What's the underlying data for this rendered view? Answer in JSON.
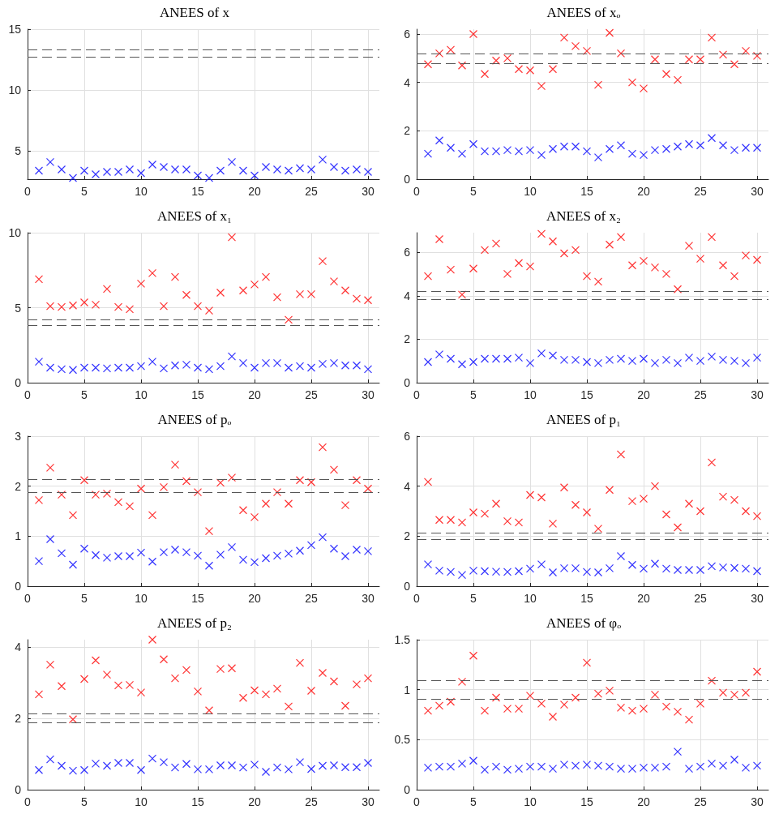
{
  "chart_data": [
    {
      "type": "scatter",
      "title": "ANEES of x",
      "x": [
        1,
        2,
        3,
        4,
        5,
        6,
        7,
        8,
        9,
        10,
        11,
        12,
        13,
        14,
        15,
        16,
        17,
        18,
        19,
        20,
        21,
        22,
        23,
        24,
        25,
        26,
        27,
        28,
        29,
        30
      ],
      "xlim": [
        0,
        31
      ],
      "xticks": [
        0,
        5,
        10,
        15,
        20,
        25,
        30
      ],
      "ylim": [
        2.7,
        15
      ],
      "yticks": [
        5,
        10,
        15
      ],
      "grid": true,
      "marker": "cross",
      "series": [
        {
          "color": "#0000ff",
          "values": [
            3.4,
            4.1,
            3.5,
            2.8,
            3.4,
            3.1,
            3.3,
            3.3,
            3.5,
            3.2,
            3.9,
            3.7,
            3.5,
            3.5,
            3.0,
            2.8,
            3.4,
            4.1,
            3.4,
            3.0,
            3.7,
            3.5,
            3.4,
            3.6,
            3.5,
            4.3,
            3.7,
            3.4,
            3.5,
            3.3
          ]
        }
      ],
      "ref_lines": [
        {
          "axis": "y",
          "value": 13.3,
          "color": "#555555",
          "line_style": "dashed"
        },
        {
          "axis": "y",
          "value": 12.7,
          "color": "#555555",
          "line_style": "dashed"
        }
      ]
    },
    {
      "type": "scatter",
      "title": "ANEES of xₒ",
      "x": [
        1,
        2,
        3,
        4,
        5,
        6,
        7,
        8,
        9,
        10,
        11,
        12,
        13,
        14,
        15,
        16,
        17,
        18,
        19,
        20,
        21,
        22,
        23,
        24,
        25,
        26,
        27,
        28,
        29,
        30
      ],
      "xlim": [
        0,
        31
      ],
      "xticks": [
        0,
        5,
        10,
        15,
        20,
        25,
        30
      ],
      "ylim": [
        0,
        6.2
      ],
      "yticks": [
        0,
        2,
        4,
        6
      ],
      "grid": true,
      "marker": "cross",
      "series": [
        {
          "color": "#ff0000",
          "values": [
            4.75,
            5.2,
            5.35,
            4.7,
            6.0,
            4.35,
            4.9,
            5.0,
            4.55,
            4.5,
            3.85,
            4.55,
            5.85,
            5.5,
            5.3,
            3.9,
            6.05,
            5.2,
            4.0,
            3.75,
            4.95,
            4.35,
            4.1,
            4.95,
            4.95,
            5.85,
            5.15,
            4.75,
            5.3,
            5.1
          ]
        },
        {
          "color": "#0000ff",
          "values": [
            1.05,
            1.6,
            1.3,
            1.05,
            1.45,
            1.15,
            1.15,
            1.2,
            1.15,
            1.2,
            1.0,
            1.25,
            1.35,
            1.35,
            1.15,
            0.9,
            1.25,
            1.4,
            1.05,
            1.0,
            1.2,
            1.25,
            1.35,
            1.45,
            1.4,
            1.7,
            1.4,
            1.2,
            1.3,
            1.3
          ]
        }
      ],
      "ref_lines": [
        {
          "axis": "y",
          "value": 5.2,
          "color": "#555555",
          "line_style": "dashed"
        },
        {
          "axis": "y",
          "value": 4.8,
          "color": "#555555",
          "line_style": "dashed"
        }
      ]
    },
    {
      "type": "scatter",
      "title": "ANEES of x₁",
      "x": [
        1,
        2,
        3,
        4,
        5,
        6,
        7,
        8,
        9,
        10,
        11,
        12,
        13,
        14,
        15,
        16,
        17,
        18,
        19,
        20,
        21,
        22,
        23,
        24,
        25,
        26,
        27,
        28,
        29,
        30
      ],
      "xlim": [
        0,
        31
      ],
      "xticks": [
        0,
        5,
        10,
        15,
        20,
        25,
        30
      ],
      "ylim": [
        0,
        10
      ],
      "yticks": [
        0,
        5,
        10
      ],
      "grid": true,
      "marker": "cross",
      "series": [
        {
          "color": "#ff0000",
          "values": [
            6.9,
            5.1,
            5.05,
            5.15,
            5.35,
            5.2,
            6.25,
            5.05,
            4.9,
            6.6,
            7.3,
            5.1,
            7.05,
            5.85,
            5.1,
            4.8,
            6.0,
            9.7,
            6.15,
            6.55,
            7.05,
            5.7,
            4.2,
            5.9,
            5.9,
            8.1,
            6.75,
            6.15,
            5.6,
            5.5
          ]
        },
        {
          "color": "#0000ff",
          "values": [
            1.4,
            1.0,
            0.9,
            0.85,
            1.0,
            1.0,
            0.95,
            1.0,
            1.0,
            1.1,
            1.4,
            0.95,
            1.15,
            1.2,
            1.0,
            0.9,
            1.1,
            1.75,
            1.3,
            1.0,
            1.3,
            1.3,
            1.0,
            1.1,
            1.0,
            1.25,
            1.3,
            1.15,
            1.15,
            0.9
          ]
        }
      ],
      "ref_lines": [
        {
          "axis": "y",
          "value": 4.2,
          "color": "#555555",
          "line_style": "dashed"
        },
        {
          "axis": "y",
          "value": 3.8,
          "color": "#555555",
          "line_style": "dashed"
        }
      ]
    },
    {
      "type": "scatter",
      "title": "ANEES of x₂",
      "x": [
        1,
        2,
        3,
        4,
        5,
        6,
        7,
        8,
        9,
        10,
        11,
        12,
        13,
        14,
        15,
        16,
        17,
        18,
        19,
        20,
        21,
        22,
        23,
        24,
        25,
        26,
        27,
        28,
        29,
        30
      ],
      "xlim": [
        0,
        31
      ],
      "xticks": [
        0,
        5,
        10,
        15,
        20,
        25,
        30
      ],
      "ylim": [
        0,
        6.9
      ],
      "yticks": [
        0,
        2,
        4,
        6
      ],
      "grid": true,
      "marker": "cross",
      "series": [
        {
          "color": "#ff0000",
          "values": [
            4.9,
            6.6,
            5.2,
            4.05,
            5.25,
            6.1,
            6.4,
            5.0,
            5.5,
            5.35,
            6.85,
            6.5,
            5.95,
            6.1,
            4.9,
            4.65,
            6.35,
            6.7,
            5.4,
            5.6,
            5.3,
            5.0,
            4.3,
            6.3,
            5.7,
            6.7,
            5.4,
            4.9,
            5.85,
            5.65
          ]
        },
        {
          "color": "#0000ff",
          "values": [
            0.95,
            1.3,
            1.1,
            0.85,
            0.95,
            1.1,
            1.1,
            1.1,
            1.15,
            0.9,
            1.35,
            1.25,
            1.05,
            1.05,
            0.95,
            0.9,
            1.05,
            1.1,
            1.0,
            1.1,
            0.9,
            1.05,
            0.9,
            1.15,
            1.0,
            1.2,
            1.05,
            1.0,
            0.9,
            1.15
          ]
        }
      ],
      "ref_lines": [
        {
          "axis": "y",
          "value": 4.2,
          "color": "#555555",
          "line_style": "dashed"
        },
        {
          "axis": "y",
          "value": 3.85,
          "color": "#555555",
          "line_style": "dashed"
        }
      ]
    },
    {
      "type": "scatter",
      "title": "ANEES of pₒ",
      "x": [
        1,
        2,
        3,
        4,
        5,
        6,
        7,
        8,
        9,
        10,
        11,
        12,
        13,
        14,
        15,
        16,
        17,
        18,
        19,
        20,
        21,
        22,
        23,
        24,
        25,
        26,
        27,
        28,
        29,
        30
      ],
      "xlim": [
        0,
        31
      ],
      "xticks": [
        0,
        5,
        10,
        15,
        20,
        25,
        30
      ],
      "ylim": [
        0,
        3
      ],
      "yticks": [
        0,
        1,
        2,
        3
      ],
      "grid": true,
      "marker": "cross",
      "series": [
        {
          "color": "#ff0000",
          "values": [
            1.72,
            2.37,
            1.83,
            1.42,
            2.12,
            1.83,
            1.85,
            1.68,
            1.6,
            1.95,
            1.42,
            1.98,
            2.43,
            2.1,
            1.88,
            1.1,
            2.07,
            2.17,
            1.52,
            1.38,
            1.65,
            1.88,
            1.65,
            2.12,
            2.08,
            2.78,
            2.33,
            1.62,
            2.12,
            1.95
          ]
        },
        {
          "color": "#0000ff",
          "values": [
            0.5,
            0.94,
            0.66,
            0.43,
            0.75,
            0.62,
            0.57,
            0.6,
            0.6,
            0.67,
            0.49,
            0.68,
            0.73,
            0.68,
            0.61,
            0.41,
            0.63,
            0.78,
            0.53,
            0.48,
            0.56,
            0.61,
            0.65,
            0.71,
            0.82,
            0.98,
            0.75,
            0.6,
            0.73,
            0.7
          ]
        }
      ],
      "ref_lines": [
        {
          "axis": "y",
          "value": 2.13,
          "color": "#555555",
          "line_style": "dashed"
        },
        {
          "axis": "y",
          "value": 1.87,
          "color": "#555555",
          "line_style": "dashed"
        }
      ]
    },
    {
      "type": "scatter",
      "title": "ANEES of p₁",
      "x": [
        1,
        2,
        3,
        4,
        5,
        6,
        7,
        8,
        9,
        10,
        11,
        12,
        13,
        14,
        15,
        16,
        17,
        18,
        19,
        20,
        21,
        22,
        23,
        24,
        25,
        26,
        27,
        28,
        29,
        30
      ],
      "xlim": [
        0,
        31
      ],
      "xticks": [
        0,
        5,
        10,
        15,
        20,
        25,
        30
      ],
      "ylim": [
        0,
        6
      ],
      "yticks": [
        0,
        2,
        4,
        6
      ],
      "grid": true,
      "marker": "cross",
      "series": [
        {
          "color": "#ff0000",
          "values": [
            4.17,
            2.65,
            2.65,
            2.55,
            2.95,
            2.9,
            3.3,
            2.6,
            2.55,
            3.65,
            3.55,
            2.5,
            3.95,
            3.25,
            2.95,
            2.3,
            3.85,
            5.27,
            3.4,
            3.5,
            4.0,
            2.87,
            2.35,
            3.3,
            3.0,
            4.95,
            3.58,
            3.45,
            3.0,
            2.8
          ]
        },
        {
          "color": "#0000ff",
          "values": [
            0.87,
            0.62,
            0.57,
            0.45,
            0.62,
            0.6,
            0.58,
            0.57,
            0.6,
            0.7,
            0.87,
            0.55,
            0.72,
            0.72,
            0.57,
            0.55,
            0.72,
            1.2,
            0.85,
            0.7,
            0.9,
            0.7,
            0.65,
            0.65,
            0.65,
            0.8,
            0.75,
            0.73,
            0.7,
            0.6
          ]
        }
      ],
      "ref_lines": [
        {
          "axis": "y",
          "value": 2.13,
          "color": "#555555",
          "line_style": "dashed"
        },
        {
          "axis": "y",
          "value": 1.87,
          "color": "#555555",
          "line_style": "dashed"
        }
      ]
    },
    {
      "type": "scatter",
      "title": "ANEES of p₂",
      "x": [
        1,
        2,
        3,
        4,
        5,
        6,
        7,
        8,
        9,
        10,
        11,
        12,
        13,
        14,
        15,
        16,
        17,
        18,
        19,
        20,
        21,
        22,
        23,
        24,
        25,
        26,
        27,
        28,
        29,
        30
      ],
      "xlim": [
        0,
        31
      ],
      "xticks": [
        0,
        5,
        10,
        15,
        20,
        25,
        30
      ],
      "ylim": [
        0,
        4.2
      ],
      "yticks": [
        0,
        2,
        4
      ],
      "grid": true,
      "marker": "cross",
      "series": [
        {
          "color": "#ff0000",
          "values": [
            2.67,
            3.5,
            2.9,
            1.97,
            3.1,
            3.62,
            3.22,
            2.92,
            2.93,
            2.72,
            4.2,
            3.65,
            3.12,
            3.35,
            2.75,
            2.22,
            3.38,
            3.4,
            2.57,
            2.78,
            2.67,
            2.83,
            2.33,
            3.55,
            2.77,
            3.27,
            3.03,
            2.35,
            2.95,
            3.12
          ]
        },
        {
          "color": "#0000ff",
          "values": [
            0.55,
            0.85,
            0.67,
            0.53,
            0.55,
            0.73,
            0.67,
            0.75,
            0.75,
            0.55,
            0.87,
            0.77,
            0.62,
            0.72,
            0.57,
            0.57,
            0.68,
            0.68,
            0.62,
            0.7,
            0.5,
            0.62,
            0.57,
            0.77,
            0.58,
            0.67,
            0.68,
            0.63,
            0.63,
            0.75
          ]
        }
      ],
      "ref_lines": [
        {
          "axis": "y",
          "value": 2.13,
          "color": "#555555",
          "line_style": "dashed"
        },
        {
          "axis": "y",
          "value": 1.87,
          "color": "#555555",
          "line_style": "dashed"
        }
      ]
    },
    {
      "type": "scatter",
      "title": "ANEES of φₒ",
      "x": [
        1,
        2,
        3,
        4,
        5,
        6,
        7,
        8,
        9,
        10,
        11,
        12,
        13,
        14,
        15,
        16,
        17,
        18,
        19,
        20,
        21,
        22,
        23,
        24,
        25,
        26,
        27,
        28,
        29,
        30
      ],
      "xlim": [
        0,
        31
      ],
      "xticks": [
        0,
        5,
        10,
        15,
        20,
        25,
        30
      ],
      "ylim": [
        0,
        1.5
      ],
      "yticks": [
        0,
        0.5,
        1,
        1.5
      ],
      "grid": true,
      "marker": "cross",
      "series": [
        {
          "color": "#ff0000",
          "values": [
            0.79,
            0.84,
            0.88,
            1.08,
            1.34,
            0.79,
            0.92,
            0.81,
            0.81,
            0.94,
            0.86,
            0.73,
            0.85,
            0.92,
            1.27,
            0.96,
            0.99,
            0.82,
            0.79,
            0.81,
            0.95,
            0.83,
            0.78,
            0.7,
            0.86,
            1.09,
            0.97,
            0.95,
            0.97,
            1.18
          ]
        },
        {
          "color": "#0000ff",
          "values": [
            0.22,
            0.23,
            0.23,
            0.26,
            0.29,
            0.2,
            0.23,
            0.2,
            0.21,
            0.23,
            0.23,
            0.21,
            0.25,
            0.24,
            0.25,
            0.24,
            0.23,
            0.21,
            0.21,
            0.22,
            0.22,
            0.23,
            0.38,
            0.21,
            0.23,
            0.26,
            0.24,
            0.3,
            0.22,
            0.24
          ]
        }
      ],
      "ref_lines": [
        {
          "axis": "y",
          "value": 1.09,
          "color": "#555555",
          "line_style": "dashed"
        },
        {
          "axis": "y",
          "value": 0.91,
          "color": "#555555",
          "line_style": "dashed"
        }
      ]
    }
  ]
}
